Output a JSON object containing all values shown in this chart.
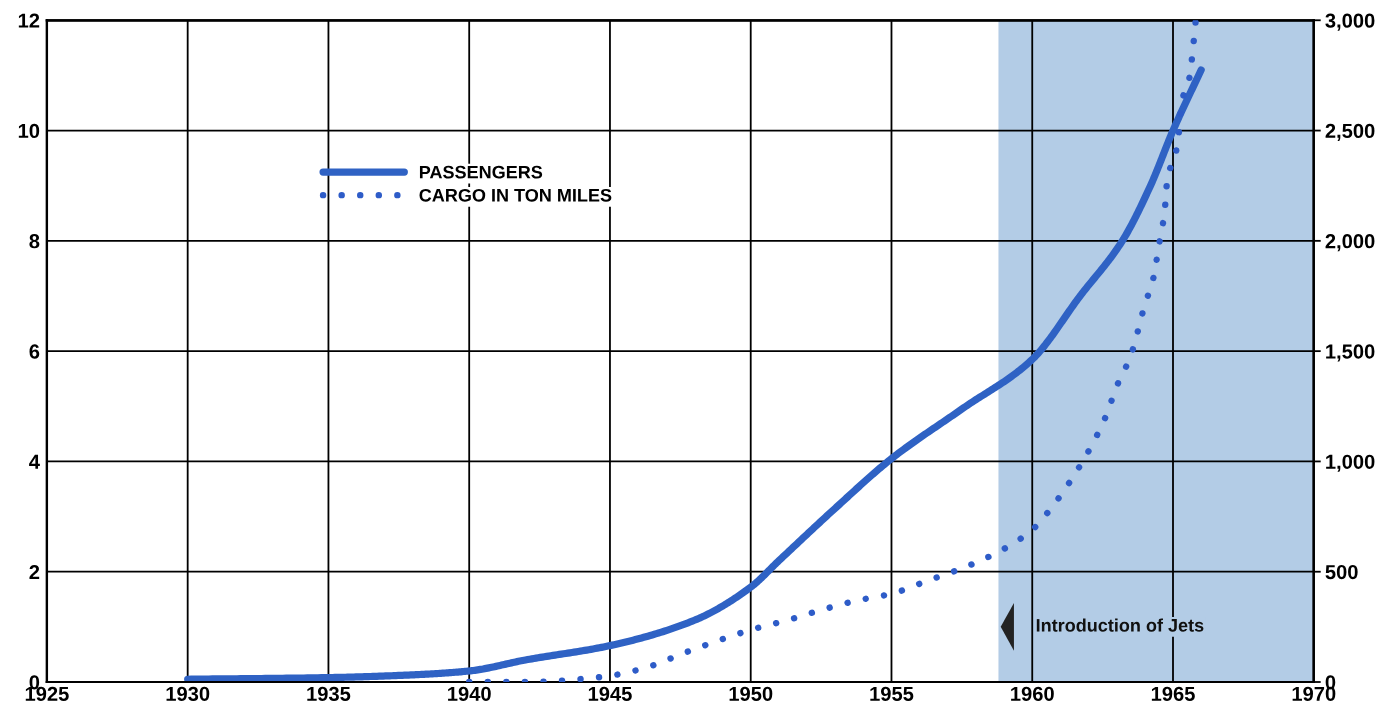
{
  "chart_data": {
    "type": "line",
    "xlim": [
      1925,
      1970
    ],
    "xticks": [
      1925,
      1930,
      1935,
      1940,
      1945,
      1950,
      1955,
      1960,
      1965,
      1970
    ],
    "ylim": [
      0,
      12
    ],
    "yticks": [
      0,
      2,
      4,
      6,
      8,
      10,
      12
    ],
    "y2lim": [
      0,
      3000
    ],
    "y2ticks": [
      0,
      500,
      {
        "value": 1000,
        "label": "1,000"
      },
      {
        "value": 1500,
        "label": "1,500"
      },
      {
        "value": 2000,
        "label": "2,000"
      },
      {
        "value": 2500,
        "label": "2,500"
      },
      {
        "value": 3000,
        "label": "3,000"
      }
    ],
    "grid": true,
    "legend": "top left",
    "series": [
      {
        "name": "PASSENGERS",
        "color": "#2f62c4",
        "line_style": "solid",
        "x": [
          1930,
          1935,
          1938,
          1940,
          1942,
          1945,
          1948,
          1950,
          1951,
          1953,
          1955,
          1957.5,
          1960,
          1961.7,
          1963.2,
          1964.2,
          1965,
          1966
        ],
        "values": [
          0.05,
          0.08,
          0.13,
          0.2,
          0.4,
          0.66,
          1.12,
          1.72,
          2.2,
          3.15,
          4.05,
          4.95,
          5.85,
          7.0,
          8.0,
          9.0,
          10.0,
          11.1
        ]
      },
      {
        "name": "CARGO IN TON MILES",
        "color": "#2e5cc8",
        "line_style": "dotted",
        "axis": "y2",
        "x": [
          1940,
          1942.2,
          1944.5,
          1945.1,
          1946.4,
          1947.6,
          1948.9,
          1950.1,
          1951.3,
          1952.6,
          1953.8,
          1955,
          1956.3,
          1957.6,
          1958.8,
          1960,
          1960.8,
          1961.5,
          1962.1,
          1962.6,
          1963,
          1963.5,
          1964,
          1964.3,
          1964.5,
          1964.7,
          1964.8,
          1965.1,
          1965.2,
          1965.3,
          1965.6,
          1965.7,
          1965.8
        ],
        "values": [
          0,
          0,
          20,
          30,
          70,
          130,
          190,
          240,
          280,
          330,
          370,
          400,
          460,
          520,
          590,
          690,
          810,
          940,
          1070,
          1200,
          1340,
          1480,
          1710,
          1830,
          1980,
          2130,
          2280,
          2400,
          2480,
          2620,
          2750,
          2860,
          2990
        ]
      }
    ],
    "bands": [
      {
        "axis": "x",
        "from": 1958.8,
        "to": 1970,
        "color": "#b3cce6"
      }
    ],
    "annotations": [
      {
        "text": "Introduction of Jets",
        "x": 1958.8,
        "y": 1.0
      }
    ]
  }
}
